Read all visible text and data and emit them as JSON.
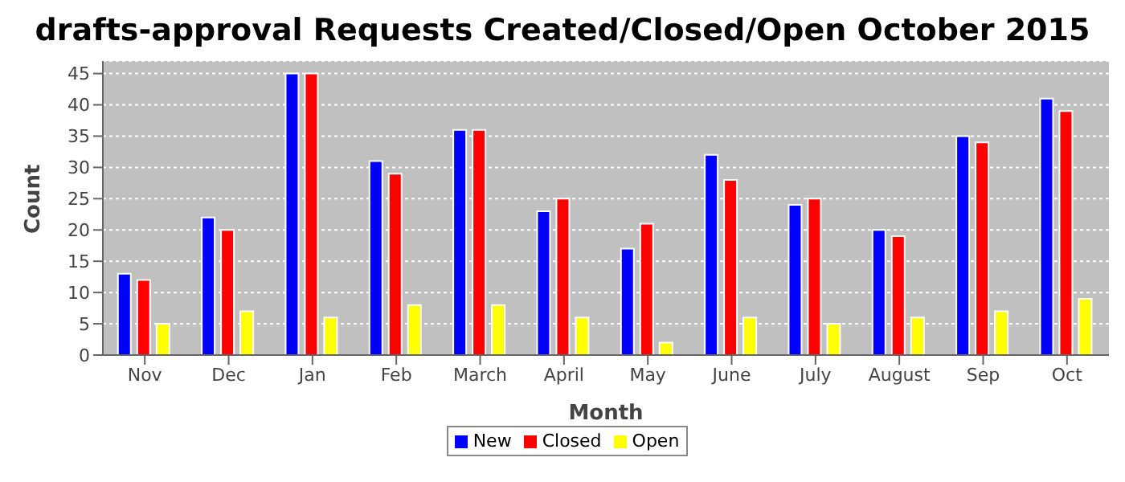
{
  "chart_data": {
    "type": "bar",
    "title": "drafts-approval Requests Created/Closed/Open October 2015",
    "xlabel": "Month",
    "ylabel": "Count",
    "categories": [
      "Nov",
      "Dec",
      "Jan",
      "Feb",
      "March",
      "April",
      "May",
      "June",
      "July",
      "August",
      "Sep",
      "Oct"
    ],
    "series": [
      {
        "name": "New",
        "color": "#0000ff",
        "values": [
          13,
          22,
          45,
          31,
          36,
          23,
          17,
          32,
          24,
          20,
          35,
          41
        ]
      },
      {
        "name": "Closed",
        "color": "#ff0000",
        "values": [
          12,
          20,
          45,
          29,
          36,
          25,
          21,
          28,
          25,
          19,
          34,
          39
        ]
      },
      {
        "name": "Open",
        "color": "#ffff00",
        "values": [
          5,
          7,
          6,
          8,
          8,
          6,
          2,
          6,
          5,
          6,
          7,
          9
        ]
      }
    ],
    "ylim": [
      0,
      47
    ],
    "yticks": [
      0,
      5,
      10,
      15,
      20,
      25,
      30,
      35,
      40,
      45
    ],
    "grid": "y",
    "legend": "bottom"
  }
}
